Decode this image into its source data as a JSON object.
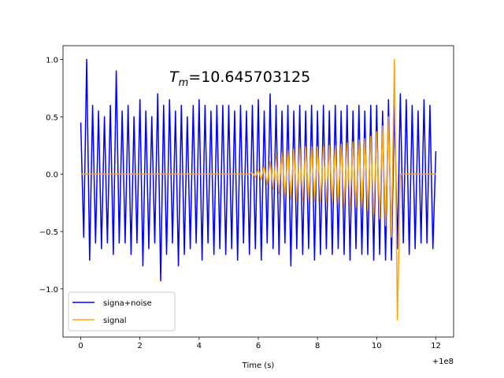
{
  "chart_data": {
    "type": "line",
    "xlabel": "Time (s)",
    "x_offset_label": "+1e8",
    "annotation": {
      "symbol": "T",
      "subscript": "m",
      "text": "=10.645703125"
    },
    "xlim": [
      -0.6,
      12.6
    ],
    "ylim": [
      -1.42,
      1.12
    ],
    "xticks": [
      0,
      2,
      4,
      6,
      8,
      10,
      12
    ],
    "yticks": [
      {
        "value": -1.0,
        "label": "−1.0"
      },
      {
        "value": -0.5,
        "label": "−0.5"
      },
      {
        "value": 0.0,
        "label": "0.0"
      },
      {
        "value": 0.5,
        "label": "0.5"
      },
      {
        "value": 1.0,
        "label": "1.0"
      }
    ],
    "legend": "lower left",
    "x": [
      0,
      0.1,
      0.2,
      0.3,
      0.4,
      0.5,
      0.6,
      0.7,
      0.8,
      0.9,
      1,
      1.1,
      1.2,
      1.3,
      1.4,
      1.5,
      1.6,
      1.7,
      1.8,
      1.9,
      2,
      2.1,
      2.2,
      2.3,
      2.4,
      2.5,
      2.6,
      2.7,
      2.8,
      2.9,
      3,
      3.1,
      3.2,
      3.3,
      3.4,
      3.5,
      3.6,
      3.7,
      3.8,
      3.9,
      4,
      4.1,
      4.2,
      4.3,
      4.4,
      4.5,
      4.6,
      4.7,
      4.8,
      4.9,
      5,
      5.1,
      5.2,
      5.3,
      5.4,
      5.5,
      5.6,
      5.7,
      5.8,
      5.9,
      6,
      6.1,
      6.2,
      6.3,
      6.4,
      6.5,
      6.6,
      6.7,
      6.8,
      6.9,
      7,
      7.1,
      7.2,
      7.3,
      7.4,
      7.5,
      7.6,
      7.7,
      7.8,
      7.9,
      8,
      8.1,
      8.2,
      8.3,
      8.4,
      8.5,
      8.6,
      8.7,
      8.8,
      8.9,
      9,
      9.1,
      9.2,
      9.3,
      9.4,
      9.5,
      9.6,
      9.7,
      9.8,
      9.9,
      10,
      10.1,
      10.2,
      10.3,
      10.4,
      10.5,
      10.6,
      10.7,
      10.8,
      10.9,
      11,
      11.1,
      11.2,
      11.3,
      11.4,
      11.5,
      11.6,
      11.7,
      11.8,
      11.9,
      12
    ],
    "series": [
      {
        "name": "signa+noise",
        "color": "#0000ff",
        "values": [
          0.45,
          -0.55,
          1.0,
          -0.75,
          0.6,
          -0.6,
          0.55,
          -0.65,
          0.5,
          -0.6,
          0.6,
          -0.7,
          0.9,
          -0.6,
          0.55,
          -0.6,
          0.6,
          -0.7,
          0.5,
          -0.6,
          0.65,
          -0.8,
          0.55,
          -0.65,
          0.5,
          -0.6,
          0.7,
          -0.93,
          0.6,
          -0.7,
          0.65,
          -0.6,
          0.55,
          -0.8,
          0.6,
          -0.7,
          0.5,
          -0.65,
          0.6,
          -0.6,
          0.65,
          -0.75,
          0.6,
          -0.6,
          0.55,
          -0.7,
          0.6,
          -0.65,
          0.6,
          -0.7,
          0.6,
          -0.65,
          0.55,
          -0.75,
          0.6,
          -0.6,
          0.55,
          -0.7,
          0.6,
          -0.65,
          0.65,
          -0.75,
          0.55,
          -0.6,
          0.7,
          -0.65,
          0.6,
          -0.7,
          0.55,
          -0.6,
          0.6,
          -0.8,
          0.55,
          -0.65,
          0.6,
          -0.7,
          0.55,
          -0.65,
          0.6,
          -0.75,
          0.55,
          -0.7,
          0.6,
          -0.65,
          0.55,
          -0.7,
          0.6,
          -0.65,
          0.55,
          -0.7,
          0.6,
          -0.75,
          0.55,
          -0.65,
          0.6,
          -0.7,
          0.55,
          -0.7,
          0.6,
          -0.75,
          0.6,
          -0.7,
          0.55,
          -0.75,
          0.65,
          -0.75,
          0.6,
          -0.65,
          0.7,
          -0.6,
          0.65,
          -0.7,
          0.6,
          -0.65,
          0.55,
          -0.6,
          0.65,
          -0.6,
          0.6,
          -0.65,
          0.2
        ]
      },
      {
        "name": "signal",
        "color": "#ffa500",
        "values": [
          0,
          0,
          0,
          0,
          0,
          0,
          0,
          0,
          0,
          0,
          0,
          0,
          0,
          0,
          0,
          0,
          0,
          0,
          0,
          0,
          0,
          0,
          0,
          0,
          0,
          0,
          0,
          0,
          0,
          0,
          0,
          0,
          0,
          0,
          0,
          0,
          0,
          0,
          0,
          0,
          0,
          0,
          0,
          0,
          0,
          0,
          0,
          0,
          0,
          0,
          0,
          0,
          0,
          0,
          0,
          0,
          0,
          0,
          0.02,
          -0.03,
          0.04,
          -0.05,
          0.07,
          -0.09,
          0.11,
          -0.13,
          0.15,
          -0.17,
          0.19,
          -0.2,
          0.21,
          -0.22,
          0.22,
          -0.23,
          0.23,
          -0.23,
          0.24,
          -0.24,
          0.24,
          -0.24,
          0.24,
          -0.24,
          0.24,
          -0.24,
          0.25,
          -0.25,
          0.25,
          -0.26,
          0.26,
          -0.27,
          0.27,
          -0.28,
          0.28,
          -0.29,
          0.3,
          -0.3,
          0.31,
          -0.32,
          0.33,
          -0.35,
          0.37,
          -0.39,
          0.42,
          -0.45,
          0.5,
          -0.55,
          1.0,
          -1.27,
          0,
          0,
          0,
          0,
          0,
          0,
          0,
          0,
          0,
          0,
          0,
          0,
          0
        ]
      }
    ]
  }
}
